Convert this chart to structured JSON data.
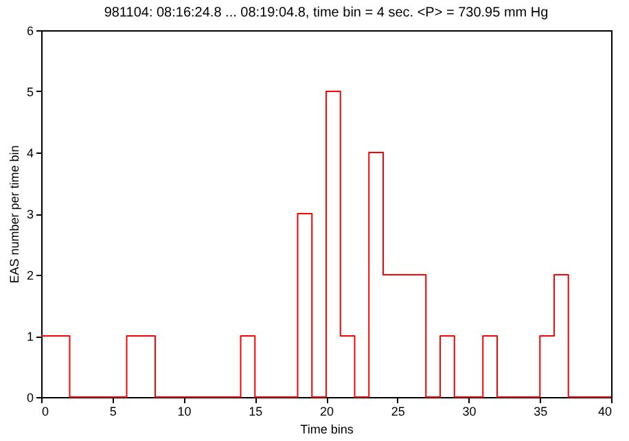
{
  "chart_data": {
    "type": "histogram",
    "title": "981104: 08:16:24.8 ... 08:19:04.8, time bin = 4 sec.  <P> = 730.95 mm Hg",
    "xlabel": "Time bins",
    "ylabel": "EAS number per time bin",
    "bins": [
      0,
      1,
      2,
      3,
      4,
      5,
      6,
      7,
      8,
      9,
      10,
      11,
      12,
      13,
      14,
      15,
      16,
      17,
      18,
      19,
      20,
      21,
      22,
      23,
      24,
      25,
      26,
      27,
      28,
      29,
      30,
      31,
      32,
      33,
      34,
      35,
      36,
      37,
      38,
      39,
      40
    ],
    "values": [
      1,
      1,
      0,
      0,
      0,
      0,
      1,
      1,
      0,
      0,
      0,
      0,
      0,
      0,
      1,
      0,
      0,
      0,
      3,
      0,
      5,
      1,
      0,
      4,
      2,
      2,
      2,
      0,
      1,
      0,
      0,
      1,
      0,
      0,
      0,
      1,
      2,
      0,
      0,
      0
    ],
    "color": "#ff0000",
    "xlim": [
      0,
      40
    ],
    "xticks": [
      0,
      5,
      10,
      15,
      20,
      25,
      30,
      35,
      40
    ],
    "ylim": [
      0,
      6
    ],
    "yticks": [
      0,
      1,
      2,
      3,
      4,
      5,
      6
    ],
    "grid": false
  }
}
